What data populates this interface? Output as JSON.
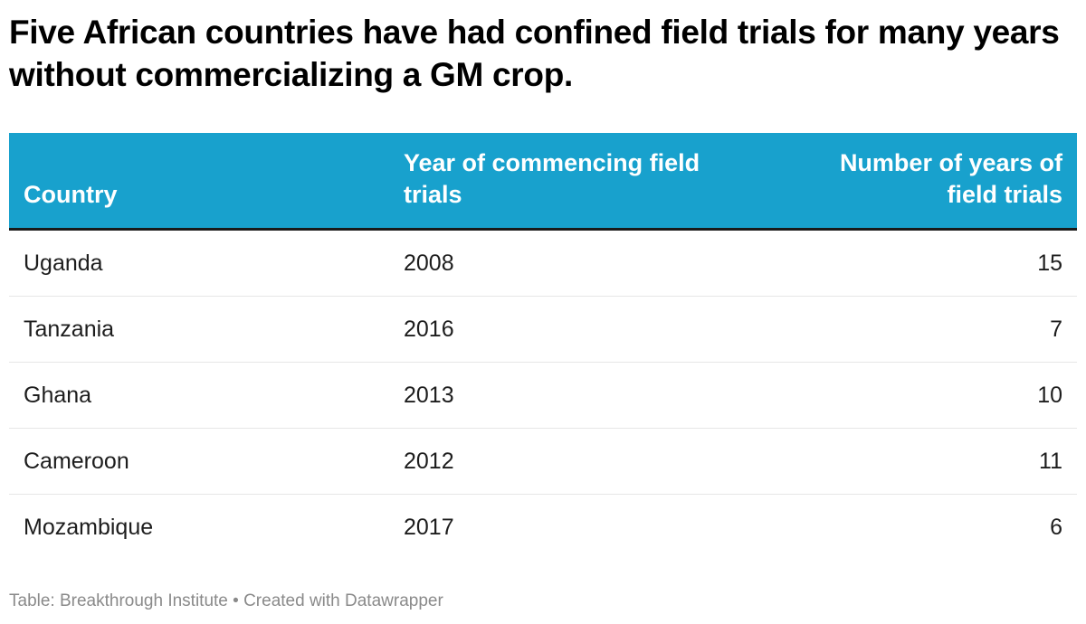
{
  "title": "Five African countries have had confined field trials for many years without commercializing a GM crop.",
  "colors": {
    "header_bg": "#18a1cd",
    "header_text": "#ffffff"
  },
  "chart_data": {
    "type": "table",
    "columns": [
      "Country",
      "Year of commencing field trials",
      "Number of years of field trials"
    ],
    "rows": [
      [
        "Uganda",
        "2008",
        "15"
      ],
      [
        "Tanzania",
        "2016",
        "7"
      ],
      [
        "Ghana",
        "2013",
        "10"
      ],
      [
        "Cameroon",
        "2012",
        "11"
      ],
      [
        "Mozambique",
        "2017",
        "6"
      ]
    ]
  },
  "footer": "Table: Breakthrough Institute • Created with Datawrapper"
}
